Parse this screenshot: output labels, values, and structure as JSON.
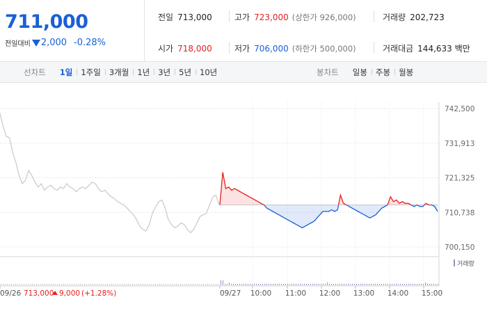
{
  "header": {
    "current_price": "711,000",
    "change_label": "전일대비",
    "change_value": "2,000",
    "change_percent": "-0.28%",
    "colors": {
      "up": "#e61e1e",
      "down": "#1a5fd6"
    },
    "stats": {
      "prev_close": {
        "label": "전일",
        "value": "713,000"
      },
      "high": {
        "label": "고가",
        "value": "723,000",
        "sub": "(상한가 926,000)"
      },
      "volume": {
        "label": "거래량",
        "value": "202,723"
      },
      "open": {
        "label": "시가",
        "value": "718,000"
      },
      "low": {
        "label": "저가",
        "value": "706,000",
        "sub": "(하한가 500,000)"
      },
      "trade_amount": {
        "label": "거래대금",
        "value": "144,633 백만"
      }
    }
  },
  "tabs": {
    "line_title": "선차트",
    "line_tabs": [
      "1일",
      "1주일",
      "3개월",
      "1년",
      "3년",
      "5년",
      "10년"
    ],
    "line_active": 0,
    "candle_title": "봉차트",
    "candle_tabs": [
      "일봉",
      "주봉",
      "월봉"
    ]
  },
  "chart_data": {
    "type": "line",
    "y_ticks": [
      "742,500",
      "731,913",
      "721,325",
      "710,738",
      "700,150"
    ],
    "ylim": [
      700150,
      742500
    ],
    "baseline": 713000,
    "x_ticks": [
      "09/26",
      "09/27",
      "10:00",
      "11:00",
      "12:00",
      "13:00",
      "14:00",
      "15:00"
    ],
    "prev_day_summary": {
      "date": "09/26",
      "close": "713,000",
      "change": "9,000",
      "change_percent": "(+1.28%)"
    },
    "volume_label": "거래량",
    "series": [
      {
        "day": "09/26",
        "color": "#c8c8c8",
        "values": [
          741000,
          737000,
          734000,
          733500,
          729000,
          726000,
          722000,
          719500,
          720500,
          723500,
          722000,
          720000,
          718500,
          719500,
          717500,
          718500,
          719000,
          718000,
          717500,
          718500,
          718000,
          719500,
          718500,
          718000,
          717000,
          718000,
          718500,
          718000,
          719000,
          720000,
          719500,
          718000,
          717000,
          717500,
          716500,
          715500,
          715000,
          714000,
          713500,
          713000,
          712000,
          711000,
          710000,
          708500,
          706500,
          705500,
          705000,
          707000,
          710500,
          712500,
          714000,
          714500,
          712000,
          708500,
          707000,
          706000,
          706500,
          707500,
          707000,
          705500,
          704500,
          705500,
          707500,
          709500,
          710000,
          710500,
          713000,
          715500,
          716000,
          713000
        ]
      },
      {
        "day": "09/27",
        "values": [
          713000,
          723000,
          718000,
          718500,
          717500,
          718000,
          717500,
          717000,
          716500,
          716000,
          715500,
          715000,
          714500,
          714000,
          713500,
          713000,
          712000,
          711500,
          711000,
          710500,
          710000,
          709500,
          709000,
          708500,
          708000,
          707500,
          707000,
          706500,
          706000,
          706500,
          707000,
          707500,
          708000,
          709000,
          710000,
          711000,
          711000,
          711000,
          711500,
          711000,
          711500,
          716000,
          713500,
          713000,
          712500,
          712000,
          711500,
          711000,
          710500,
          710000,
          709500,
          709000,
          709500,
          710000,
          711000,
          712000,
          712500,
          713000,
          715500,
          714000,
          714500,
          713500,
          714000,
          713500,
          713500,
          713000,
          712500,
          713000,
          712500,
          712500,
          713500,
          713000,
          713000,
          712500,
          711000
        ]
      }
    ]
  }
}
